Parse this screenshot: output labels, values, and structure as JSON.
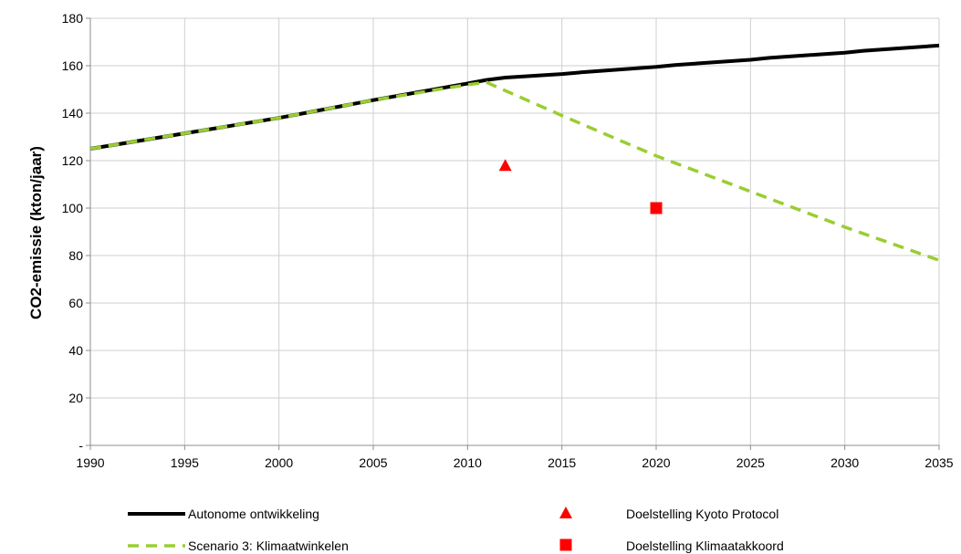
{
  "chart_data": {
    "type": "line",
    "title": "",
    "xlabel": "",
    "ylabel": "CO2-emissie  (kton/jaar)",
    "xlim": [
      1990,
      2035
    ],
    "ylim": [
      0,
      180
    ],
    "x_ticks": [
      1990,
      1995,
      2000,
      2005,
      2010,
      2015,
      2020,
      2025,
      2030,
      2035
    ],
    "x_tick_labels": [
      "1990",
      "1995",
      "2000",
      "2005",
      "2010",
      "2015",
      "2020",
      "2025",
      "2030",
      "2035"
    ],
    "y_ticks": [
      0,
      20,
      40,
      60,
      80,
      100,
      120,
      140,
      160,
      180
    ],
    "y_tick_labels": [
      "-",
      "20",
      "40",
      "60",
      "80",
      "100",
      "120",
      "140",
      "160",
      "180"
    ],
    "grid": true,
    "legend_position": "bottom",
    "series": [
      {
        "name": "Autonome ontwikkeling",
        "style": "solid",
        "color": "#000000",
        "x": [
          1990,
          1995,
          2000,
          2005,
          2010,
          2011,
          2012,
          2015,
          2016,
          2020,
          2021,
          2025,
          2026,
          2030,
          2031,
          2035
        ],
        "y": [
          125,
          131.5,
          138,
          145.5,
          152.5,
          154,
          155,
          156.5,
          157.2,
          159.5,
          160.3,
          162.5,
          163.3,
          165.5,
          166.3,
          168.5
        ]
      },
      {
        "name": "Scenario 3: Klimaatwinkelen",
        "style": "dashed",
        "color": "#9acd32",
        "x": [
          1990,
          1995,
          2000,
          2005,
          2010,
          2011,
          2015,
          2020,
          2025,
          2030,
          2035
        ],
        "y": [
          125,
          131.5,
          138,
          145.5,
          152,
          153,
          139,
          122,
          107,
          92,
          78
        ]
      },
      {
        "name": "Doelstelling Kyoto Protocol",
        "style": "marker",
        "marker": "triangle",
        "color": "#ff0000",
        "x": [
          2012
        ],
        "y": [
          118
        ]
      },
      {
        "name": "Doelstelling Klimaatakkoord",
        "style": "marker",
        "marker": "square",
        "color": "#ff0000",
        "x": [
          2020
        ],
        "y": [
          100
        ]
      }
    ]
  }
}
